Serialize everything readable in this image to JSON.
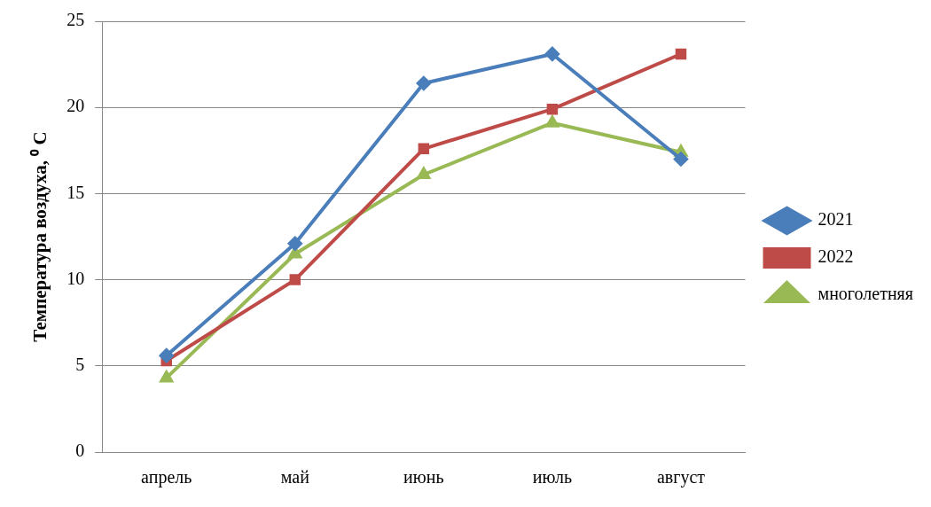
{
  "chart_data": {
    "type": "line",
    "ylabel": "Температура воздуха, ⁰ С",
    "categories": [
      "апрель",
      "май",
      "июнь",
      "июль",
      "август"
    ],
    "series": [
      {
        "name": "2021",
        "color": "#4a7ebb",
        "marker": "diamond",
        "values": [
          5.6,
          12.1,
          21.4,
          23.1,
          17.0
        ]
      },
      {
        "name": "2022",
        "color": "#be4b48",
        "marker": "square",
        "values": [
          5.3,
          10.0,
          17.6,
          19.9,
          23.1
        ]
      },
      {
        "name": "многолетняя",
        "color": "#98b954",
        "marker": "triangle",
        "values": [
          4.3,
          11.5,
          16.1,
          19.1,
          17.4
        ]
      }
    ],
    "ylim": [
      0,
      25
    ],
    "yticks": [
      0,
      5,
      10,
      15,
      20,
      25
    ],
    "grid": "y",
    "legend": "right",
    "line_style": "solid"
  }
}
